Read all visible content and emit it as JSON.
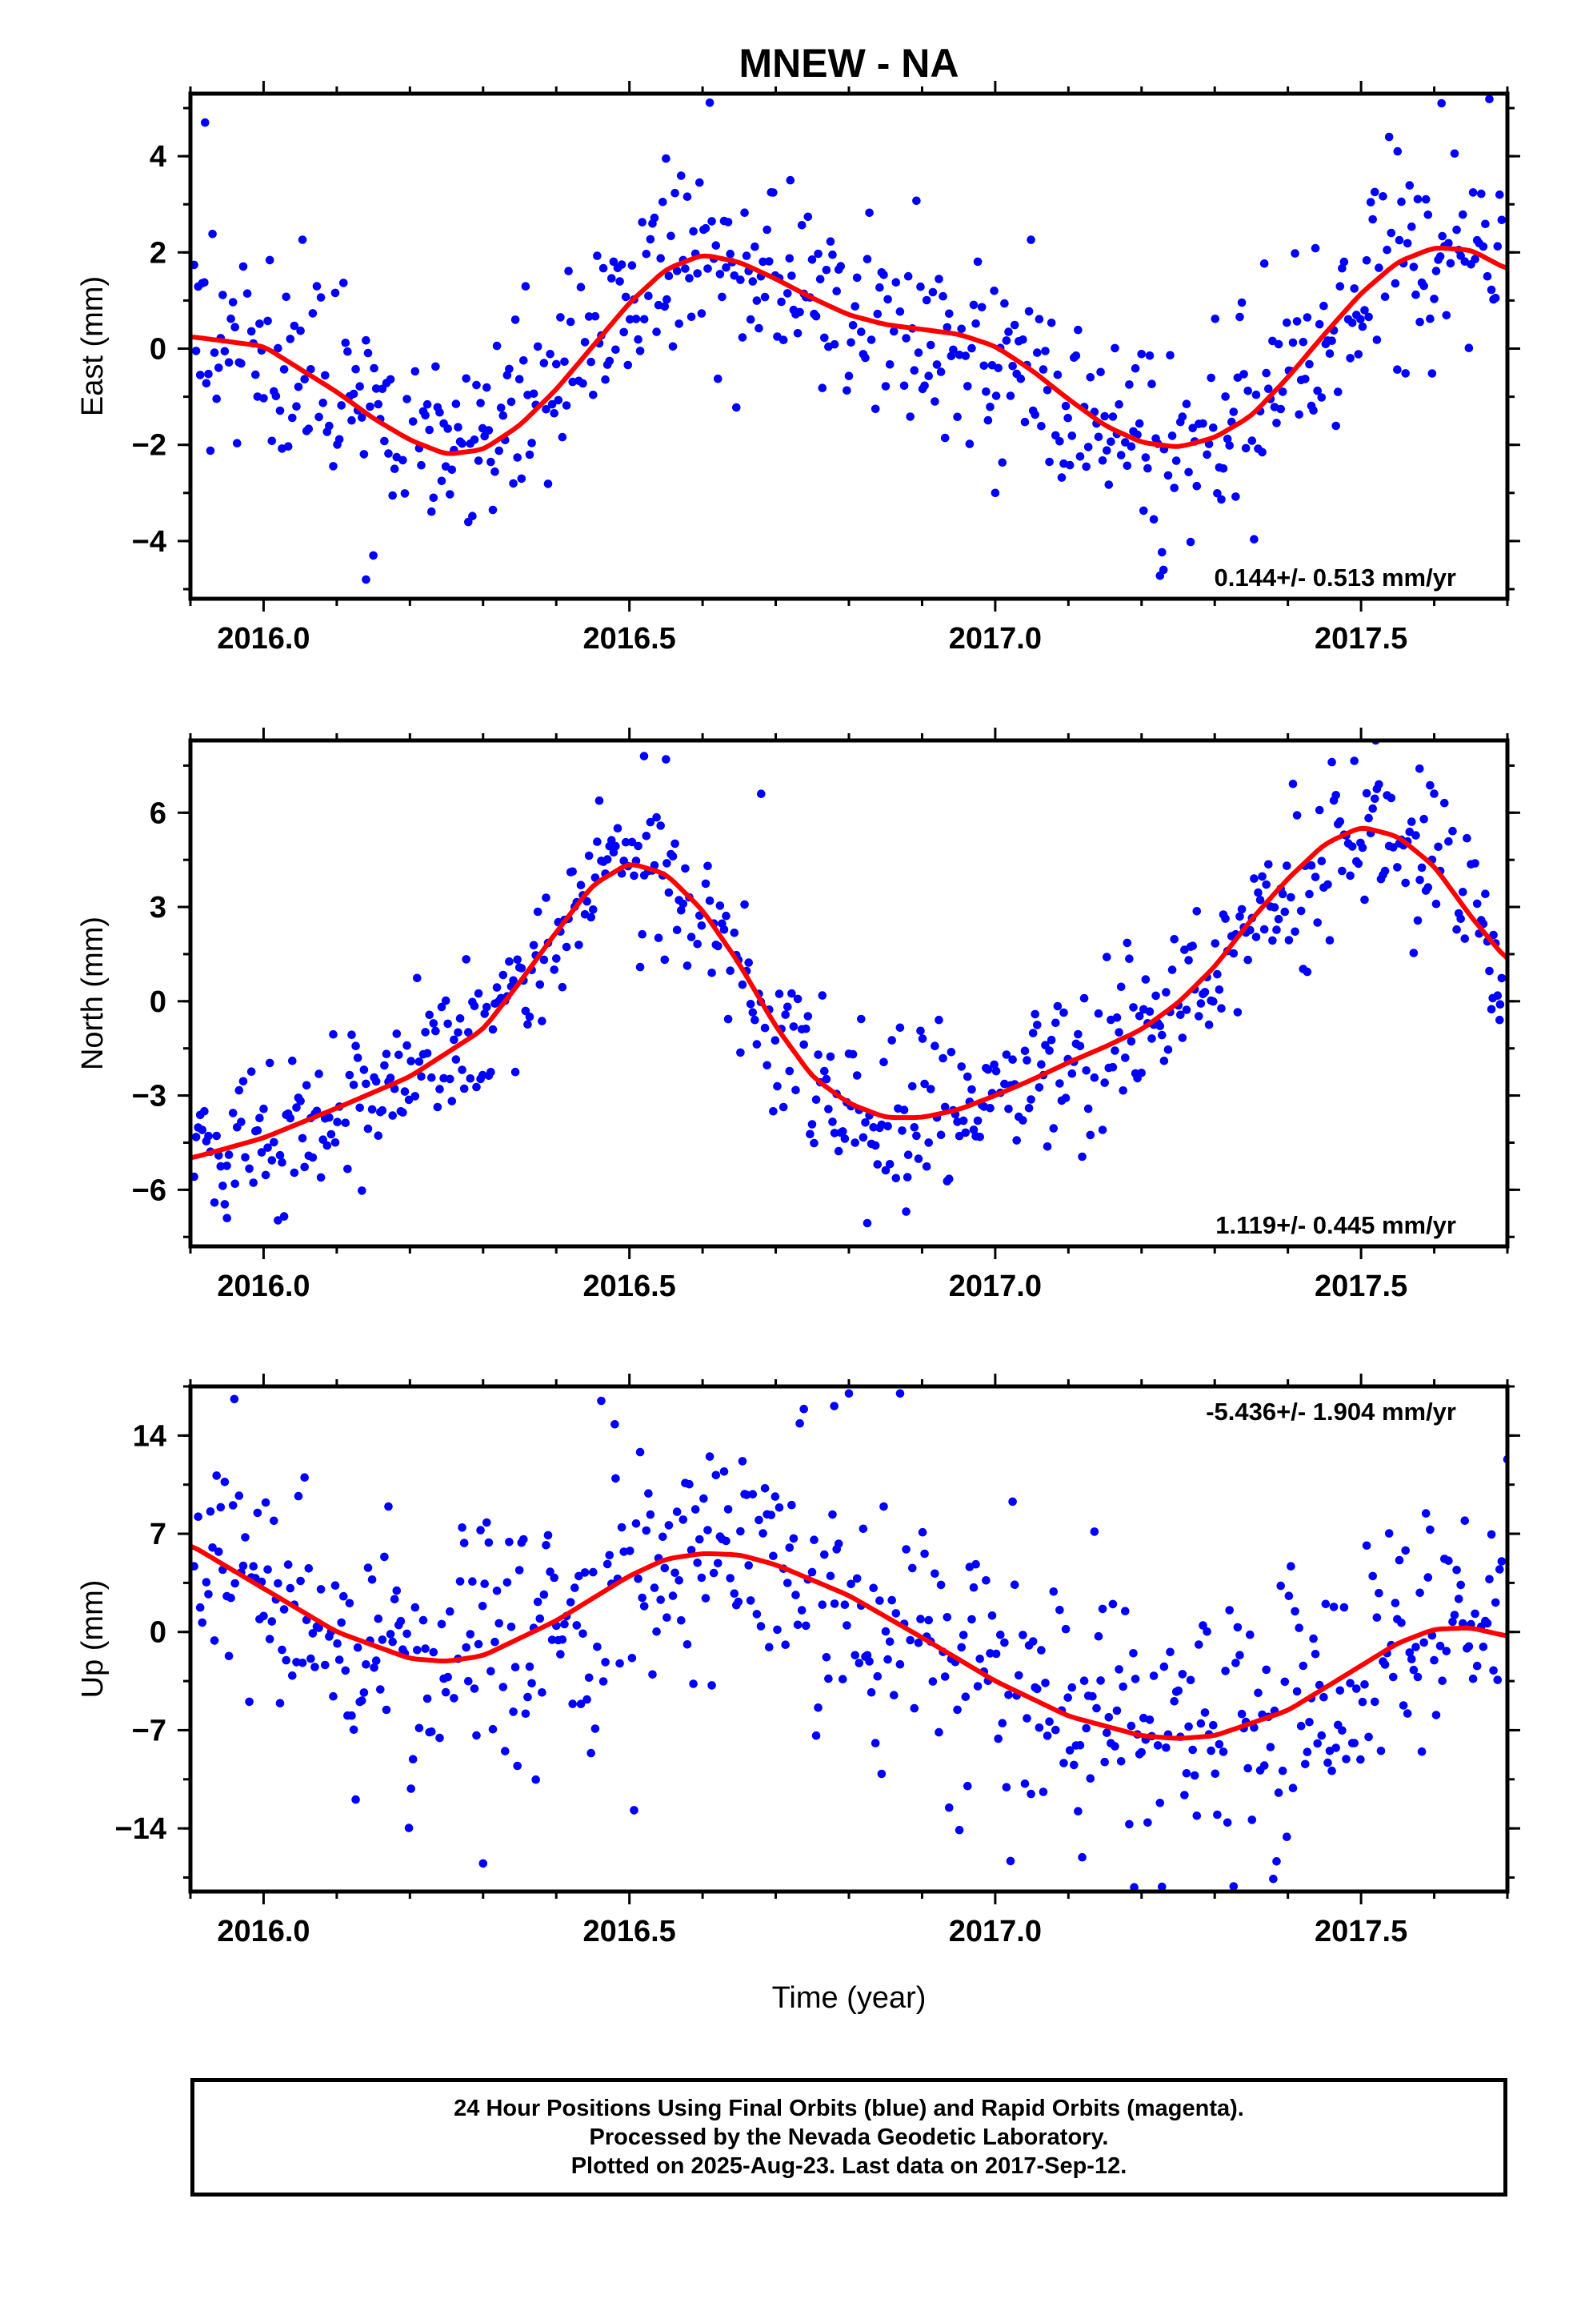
{
  "chart_data": {
    "type": "scatter",
    "title": "MNEW - NA",
    "xlabel": "Time (year)",
    "xlim": [
      2015.9,
      2017.7
    ],
    "x_ticks": [
      "2016.0",
      "2016.5",
      "2017.0",
      "2017.5"
    ],
    "point_color": "#0000ff",
    "fit_color": "#ff0000",
    "panels": [
      {
        "id": "east",
        "ylabel": "East (mm)",
        "ylim": [
          -5.2,
          5.3
        ],
        "y_ticks": [
          "4",
          "2",
          "0",
          "-2",
          "-4"
        ],
        "rate_label": "0.144+/- 0.513 mm/yr",
        "rate_position": "bottom-right",
        "fit_x": [
          2015.9,
          2016.0,
          2016.1,
          2016.15,
          2016.2,
          2016.25,
          2016.3,
          2016.35,
          2016.4,
          2016.45,
          2016.5,
          2016.55,
          2016.6,
          2016.65,
          2016.7,
          2016.75,
          2016.8,
          2016.85,
          2016.9,
          2016.95,
          2017.0,
          2017.05,
          2017.1,
          2017.15,
          2017.2,
          2017.25,
          2017.3,
          2017.35,
          2017.4,
          2017.45,
          2017.5,
          2017.55,
          2017.6,
          2017.65,
          2017.7
        ],
        "fit_y": [
          0.25,
          0.05,
          -0.9,
          -1.45,
          -1.9,
          -2.2,
          -2.1,
          -1.6,
          -0.85,
          0.05,
          0.95,
          1.65,
          1.95,
          1.8,
          1.45,
          1.05,
          0.7,
          0.5,
          0.4,
          0.3,
          0.05,
          -0.45,
          -1.05,
          -1.6,
          -1.95,
          -2.05,
          -1.85,
          -1.4,
          -0.6,
          0.3,
          1.15,
          1.8,
          2.1,
          2.05,
          1.65
        ],
        "trend": {
          "a": 0.2,
          "b": -2.3,
          "c": 1.0,
          "s": 0.15,
          "e": 0.9
        },
        "outliers": [
          [
            2015.92,
            4.7
          ],
          [
            2016.14,
            -4.8
          ],
          [
            2016.15,
            -4.3
          ],
          [
            2016.55,
            3.95
          ],
          [
            2016.72,
            3.5
          ],
          [
            2017.0,
            -3.0
          ],
          [
            2017.23,
            -4.6
          ],
          [
            2017.55,
            4.1
          ],
          [
            2017.61,
            5.1
          ]
        ]
      },
      {
        "id": "north",
        "ylabel": "North (mm)",
        "ylim": [
          -7.8,
          8.3
        ],
        "y_ticks": [
          "6",
          "3",
          "0",
          "-3",
          "-6"
        ],
        "rate_label": "1.119+/- 0.445 mm/yr",
        "rate_position": "bottom-right",
        "fit_x": [
          2015.9,
          2016.0,
          2016.1,
          2016.2,
          2016.3,
          2016.35,
          2016.4,
          2016.45,
          2016.5,
          2016.55,
          2016.6,
          2016.65,
          2016.7,
          2016.75,
          2016.8,
          2016.85,
          2016.9,
          2016.95,
          2017.0,
          2017.05,
          2017.1,
          2017.15,
          2017.2,
          2017.25,
          2017.3,
          2017.35,
          2017.4,
          2017.45,
          2017.5,
          2017.55,
          2017.6,
          2017.65,
          2017.7
        ],
        "fit_y": [
          -5.0,
          -4.35,
          -3.4,
          -2.4,
          -0.9,
          0.6,
          2.2,
          3.7,
          4.4,
          4.05,
          2.9,
          1.2,
          -0.8,
          -2.4,
          -3.25,
          -3.7,
          -3.7,
          -3.45,
          -3.0,
          -2.5,
          -1.95,
          -1.45,
          -0.9,
          -0.05,
          1.1,
          2.6,
          3.9,
          5.0,
          5.55,
          5.25,
          4.3,
          2.7,
          1.3
        ],
        "trend": {
          "a": 0.6,
          "b": -4.3,
          "c": 1.2,
          "s": 0.1,
          "e": 0.9
        },
        "outliers": [
          [
            2015.95,
            -6.9
          ],
          [
            2016.52,
            7.8
          ],
          [
            2016.55,
            7.7
          ],
          [
            2016.68,
            6.6
          ],
          [
            2017.52,
            8.3
          ],
          [
            2017.58,
            7.4
          ],
          [
            2017.68,
            0.1
          ],
          [
            2017.69,
            -0.1
          ],
          [
            2016.88,
            -5.6
          ]
        ]
      },
      {
        "id": "up",
        "ylabel": "Up (mm)",
        "ylim": [
          -18.5,
          17.5
        ],
        "y_ticks": [
          "14",
          "7",
          "0",
          "-7",
          "-14"
        ],
        "rate_label": "-5.436+/- 1.904 mm/yr",
        "rate_position": "top-right",
        "fit_x": [
          2015.9,
          2016.0,
          2016.1,
          2016.2,
          2016.25,
          2016.3,
          2016.4,
          2016.5,
          2016.55,
          2016.6,
          2016.65,
          2016.7,
          2016.8,
          2016.9,
          2017.0,
          2017.1,
          2017.2,
          2017.25,
          2017.3,
          2017.4,
          2017.5,
          2017.55,
          2017.6,
          2017.65,
          2017.7
        ],
        "fit_y": [
          6.2,
          3.1,
          0.0,
          -1.9,
          -2.1,
          -1.7,
          0.8,
          4.0,
          5.2,
          5.6,
          5.5,
          4.8,
          2.6,
          -0.4,
          -3.5,
          -6.0,
          -7.4,
          -7.6,
          -7.4,
          -5.6,
          -2.4,
          -0.8,
          0.2,
          0.3,
          -0.3
        ],
        "trend": {
          "a": -1.0,
          "b": -7.0,
          "c": 4.6,
          "s": 0.05,
          "e": 0.9
        },
        "outliers": [
          [
            2015.96,
            16.6
          ],
          [
            2016.3,
            -16.5
          ],
          [
            2016.48,
            14.8
          ],
          [
            2016.8,
            17.0
          ],
          [
            2016.78,
            16.1
          ],
          [
            2016.87,
            17.0
          ],
          [
            2017.19,
            -18.2
          ],
          [
            2017.38,
            -17.6
          ],
          [
            2017.7,
            12.3
          ]
        ]
      }
    ]
  },
  "caption": {
    "line1": "24 Hour Positions Using Final Orbits (blue) and Rapid Orbits (magenta).",
    "line2": "Processed by the Nevada Geodetic Laboratory.",
    "line3": "Plotted on 2025-Aug-23. Last data on 2017-Sep-12."
  }
}
